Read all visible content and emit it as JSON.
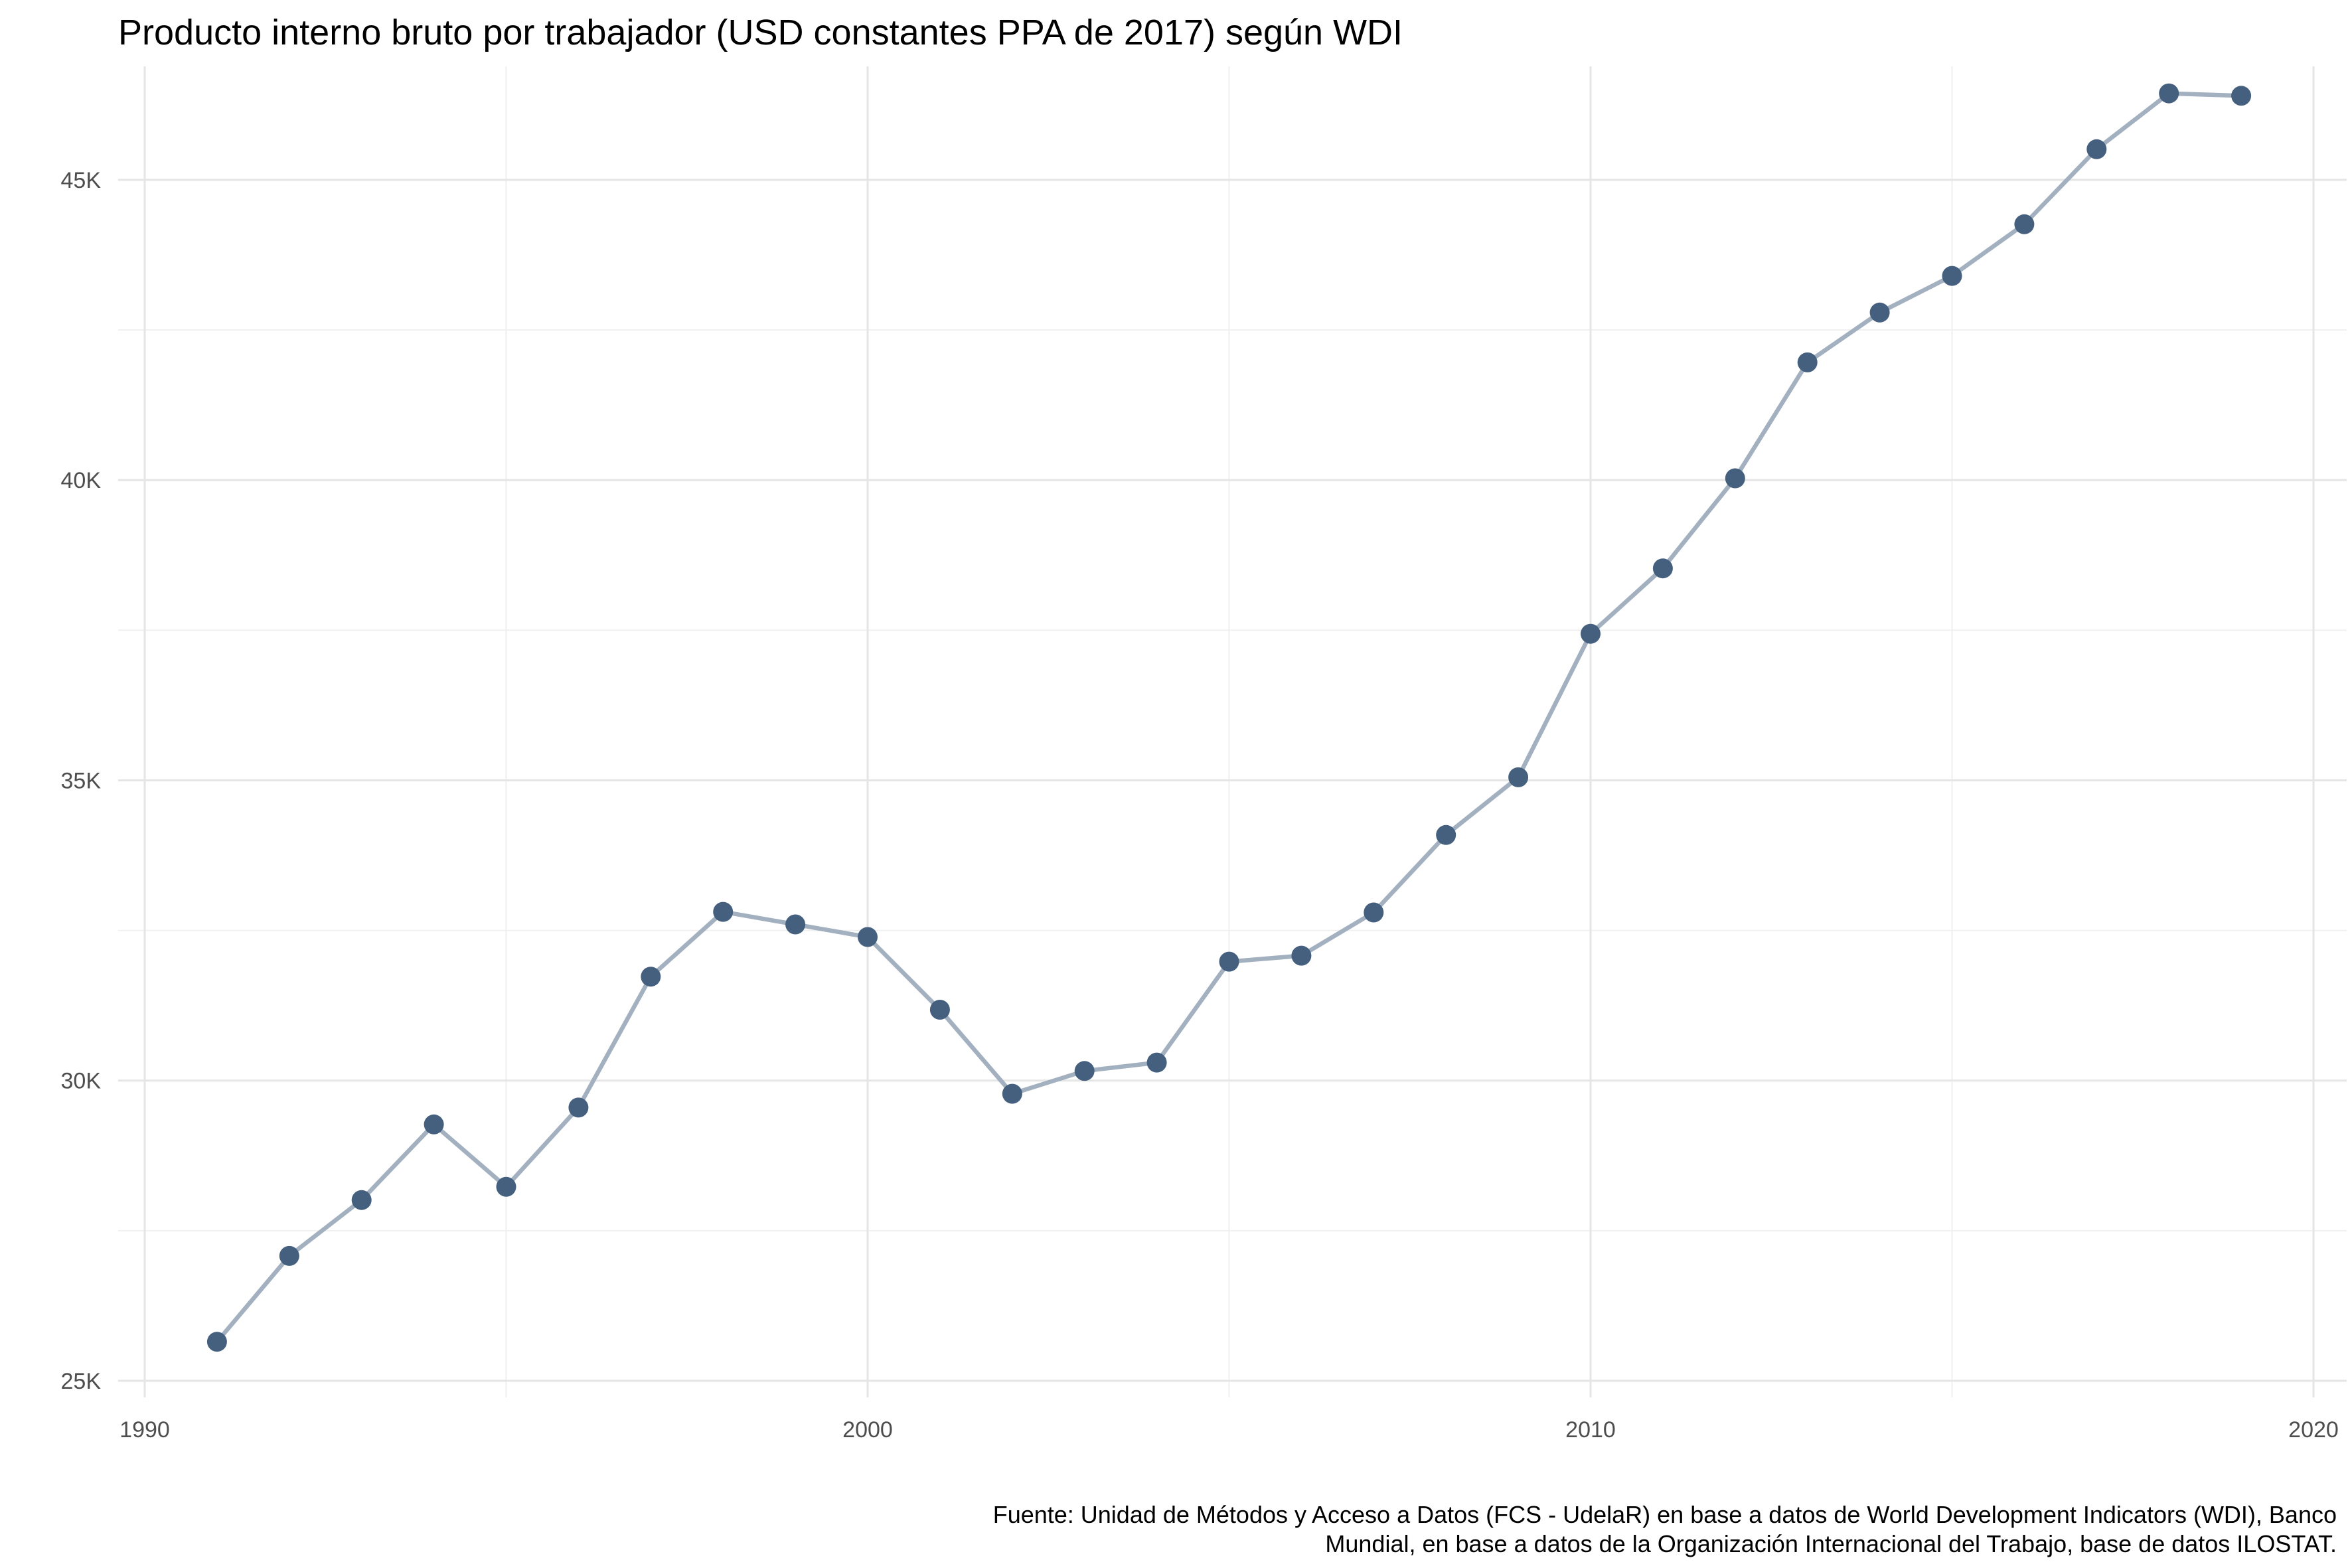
{
  "chart_data": {
    "type": "line",
    "title": "Producto interno bruto por trabajador (USD constantes PPA de 2017) según WDI",
    "xlabel": "",
    "ylabel": "",
    "xlim": [
      1990,
      2020
    ],
    "ylim": [
      25000,
      47000
    ],
    "x_ticks": [
      1990,
      2000,
      2010,
      2020
    ],
    "x_tick_labels": [
      "1990",
      "2000",
      "2010",
      "2020"
    ],
    "y_ticks": [
      25000,
      30000,
      35000,
      40000,
      45000
    ],
    "y_tick_labels": [
      "25K",
      "30K",
      "35K",
      "40K",
      "45K"
    ],
    "grid": true,
    "legend": "none",
    "colors": {
      "line": "#a2b0c0",
      "points": "#45607e"
    },
    "x": [
      1991,
      1992,
      1993,
      1994,
      1995,
      1996,
      1997,
      1998,
      1999,
      2000,
      2001,
      2002,
      2003,
      2004,
      2005,
      2006,
      2007,
      2008,
      2009,
      2010,
      2011,
      2012,
      2013,
      2014,
      2015,
      2016,
      2017,
      2018,
      2019
    ],
    "y": [
      25650,
      27080,
      28010,
      29270,
      28230,
      29550,
      31730,
      32810,
      32600,
      32390,
      31180,
      29780,
      30160,
      30300,
      31980,
      32080,
      32800,
      34090,
      35050,
      37440,
      38530,
      40030,
      41960,
      42790,
      43400,
      44260,
      45510,
      46440,
      46400
    ],
    "caption": [
      "Fuente: Unidad de Métodos y Acceso a Datos (FCS - UdelaR) en base a datos de World Development Indicators (WDI), Banco",
      "Mundial, en base a datos de la Organización Internacional del Trabajo, base de datos ILOSTAT."
    ]
  }
}
